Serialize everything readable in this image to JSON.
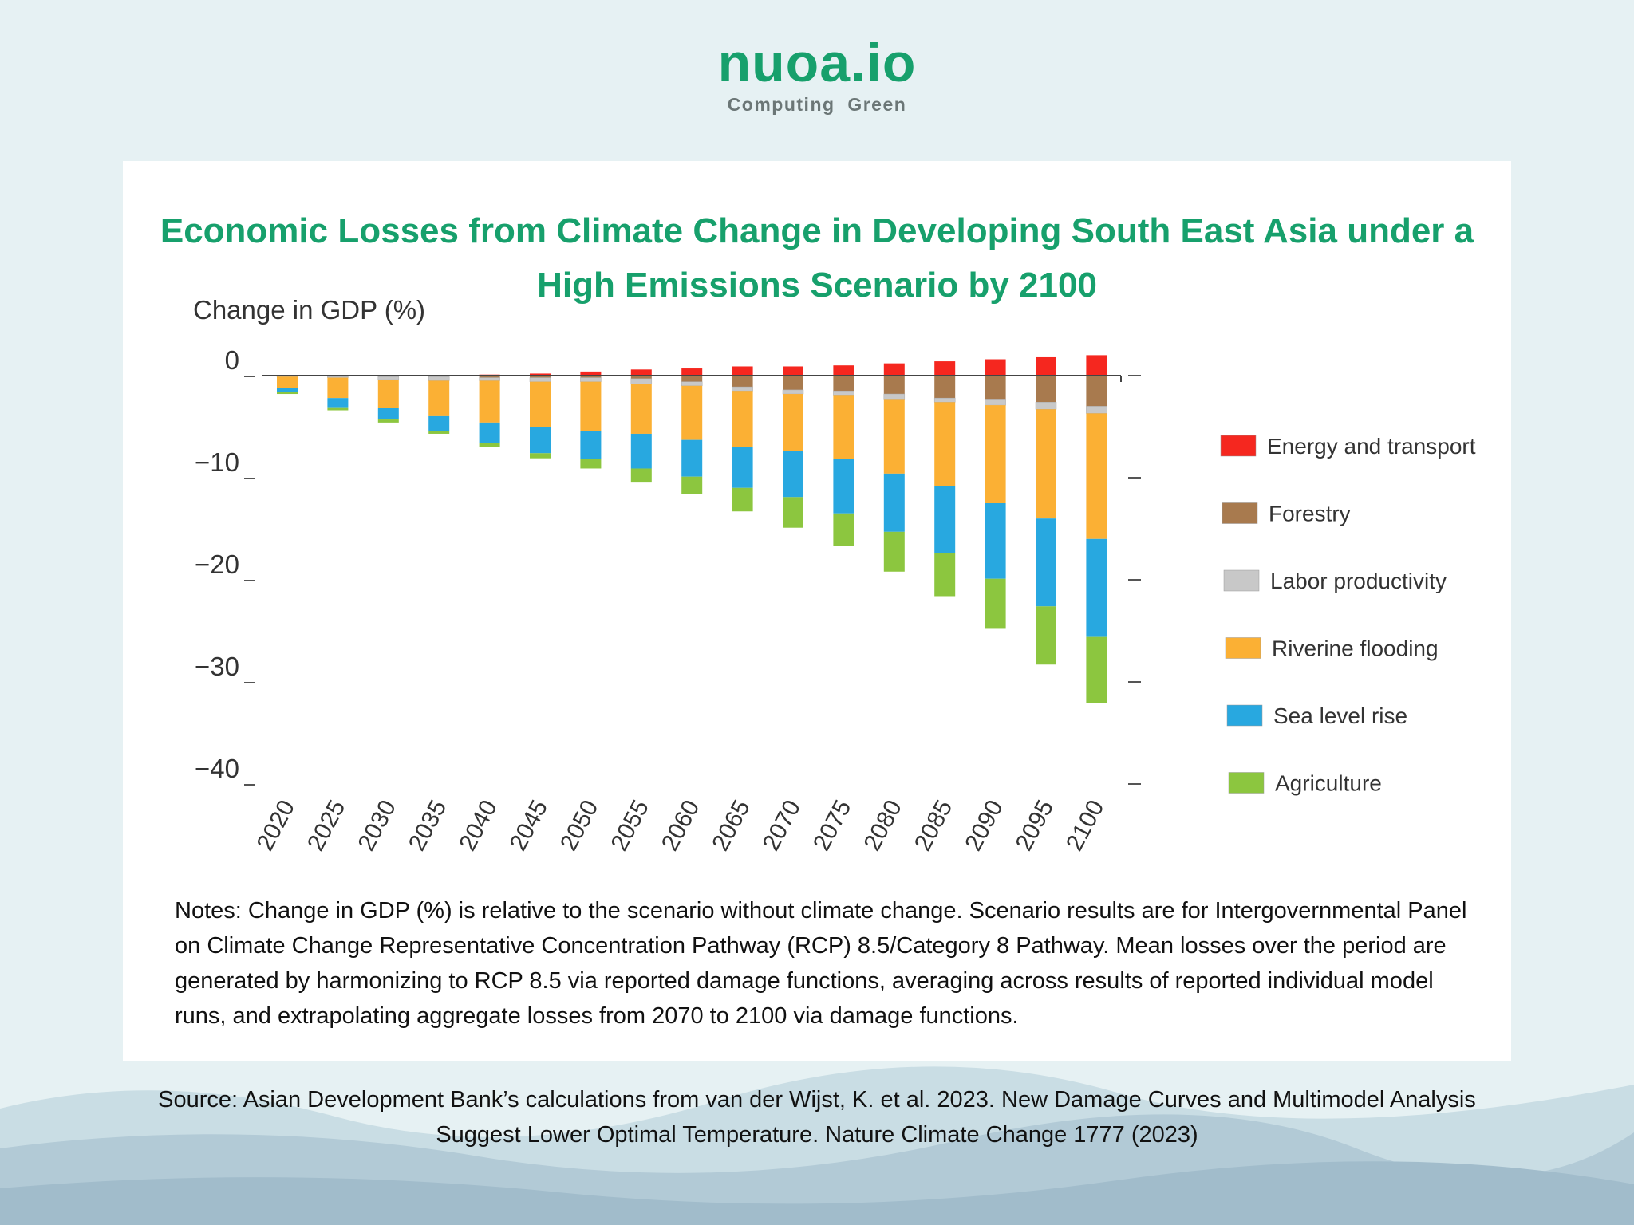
{
  "brand": {
    "name": "nuoa.io",
    "tagline": "Computing  Green"
  },
  "chart_data": {
    "type": "bar",
    "stacked": true,
    "title": "Economic Losses from Climate Change in Developing South East Asia under a High Emissions Scenario by 2100",
    "y_label": "Change in GDP (%)",
    "categories": [
      "2020",
      "2025",
      "2030",
      "2035",
      "2040",
      "2045",
      "2050",
      "2055",
      "2060",
      "2065",
      "2070",
      "2075",
      "2080",
      "2085",
      "2090",
      "2095",
      "2100"
    ],
    "series": [
      {
        "name": "Energy and transport",
        "color": "#f5271f",
        "values": [
          0,
          0,
          0,
          0,
          0.1,
          0.2,
          0.4,
          0.6,
          0.7,
          0.9,
          0.9,
          1.0,
          1.2,
          1.4,
          1.6,
          1.8,
          2.0
        ]
      },
      {
        "name": "Forestry",
        "color": "#a87a4e",
        "values": [
          0,
          -0.1,
          -0.1,
          -0.1,
          -0.2,
          -0.2,
          -0.2,
          -0.3,
          -0.6,
          -1.1,
          -1.4,
          -1.5,
          -1.8,
          -2.2,
          -2.3,
          -2.6,
          -3.0
        ]
      },
      {
        "name": "Labor productivity",
        "color": "#c8c8c8",
        "values": [
          -0.1,
          -0.1,
          -0.3,
          -0.4,
          -0.3,
          -0.4,
          -0.4,
          -0.5,
          -0.4,
          -0.4,
          -0.4,
          -0.4,
          -0.5,
          -0.4,
          -0.6,
          -0.7,
          -0.7
        ]
      },
      {
        "name": "Riverine flooding",
        "color": "#fbb034",
        "values": [
          -1.1,
          -2.0,
          -2.8,
          -3.4,
          -4.1,
          -4.4,
          -4.8,
          -4.9,
          -5.3,
          -5.5,
          -5.6,
          -6.3,
          -7.3,
          -8.2,
          -9.6,
          -10.7,
          -12.3
        ]
      },
      {
        "name": "Sea level rise",
        "color": "#28a8e0",
        "values": [
          -0.4,
          -0.9,
          -1.1,
          -1.5,
          -2.0,
          -2.6,
          -2.8,
          -3.4,
          -3.6,
          -4.0,
          -4.5,
          -5.3,
          -5.7,
          -6.6,
          -7.4,
          -8.6,
          -9.6
        ]
      },
      {
        "name": "Agriculture",
        "color": "#8cc63f",
        "values": [
          -0.2,
          -0.3,
          -0.3,
          -0.3,
          -0.4,
          -0.5,
          -0.9,
          -1.3,
          -1.7,
          -2.3,
          -3.0,
          -3.2,
          -3.9,
          -4.2,
          -4.9,
          -5.7,
          -6.5
        ]
      }
    ],
    "ylim": [
      -41,
      3
    ],
    "yticks": [
      0,
      {
        "value": -10,
        "label": "−10"
      },
      {
        "value": -20,
        "label": "−20"
      },
      {
        "value": -30,
        "label": "−30"
      },
      {
        "value": -40,
        "label": "−40"
      }
    ],
    "legend": "right"
  },
  "notes": "Notes: Change in GDP (%) is relative to the scenario without climate change. Scenario results are for Intergovernmental Panel on Climate Change Representative Concentration Pathway (RCP) 8.5/Category 8 Pathway. Mean losses over the period are generated by harmonizing to RCP 8.5 via reported damage functions, averaging across results of reported individual model runs, and extrapolating aggregate losses from 2070 to 2100 via damage functions.",
  "source": "Source: Asian Development Bank’s calculations from van der Wijst, K. et al. 2023. New Damage Curves and Multimodel Analysis Suggest Lower Optimal Temperature. Nature Climate Change 1777 (2023)"
}
